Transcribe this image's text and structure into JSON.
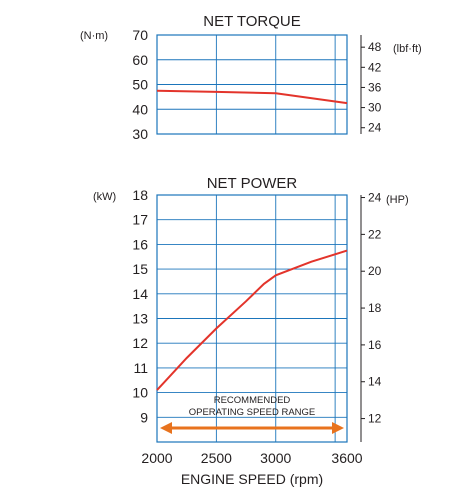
{
  "chart_data": [
    {
      "type": "line",
      "title": "NET TORQUE",
      "left_unit": "(N·m)",
      "right_unit": "(lbf·ft)",
      "xlim": [
        2000,
        3600
      ],
      "ylim": [
        30,
        70
      ],
      "y_ticks": [
        30,
        40,
        50,
        60,
        70
      ],
      "right_ylim": [
        22.126,
        51.629
      ],
      "right_ticks": [
        24,
        30,
        36,
        42,
        48
      ],
      "grid": true,
      "series": [
        {
          "x": [
            2000,
            2500,
            3000,
            3600
          ],
          "y": [
            47.5,
            47.0,
            46.5,
            42.5
          ]
        }
      ]
    },
    {
      "type": "line",
      "title": "NET POWER",
      "left_unit": "(kW)",
      "right_unit": "(HP)",
      "xlabel": "ENGINE SPEED (rpm)",
      "xlim": [
        2000,
        3600
      ],
      "x_ticks": [
        2000,
        2500,
        3000,
        3600
      ],
      "ylim": [
        8,
        18
      ],
      "y_ticks": [
        9,
        10,
        11,
        12,
        13,
        14,
        15,
        16,
        17,
        18
      ],
      "right_ylim": [
        10.728,
        24.138
      ],
      "right_ticks": [
        12,
        14,
        16,
        18,
        20,
        22,
        24
      ],
      "grid": true,
      "series": [
        {
          "x": [
            2000,
            2250,
            2500,
            2750,
            2900,
            3000,
            3300,
            3600
          ],
          "y": [
            10.1,
            11.4,
            12.6,
            13.7,
            14.4,
            14.75,
            15.3,
            15.75
          ]
        }
      ],
      "annotation": {
        "line1": "RECOMMENDED",
        "line2": "OPERATING SPEED RANGE",
        "range": [
          2000,
          3600
        ],
        "color": "#e8731e"
      }
    }
  ],
  "colors": {
    "line": "#e3342b",
    "grid": "#1b75bb",
    "arrow": "#e8731e"
  }
}
